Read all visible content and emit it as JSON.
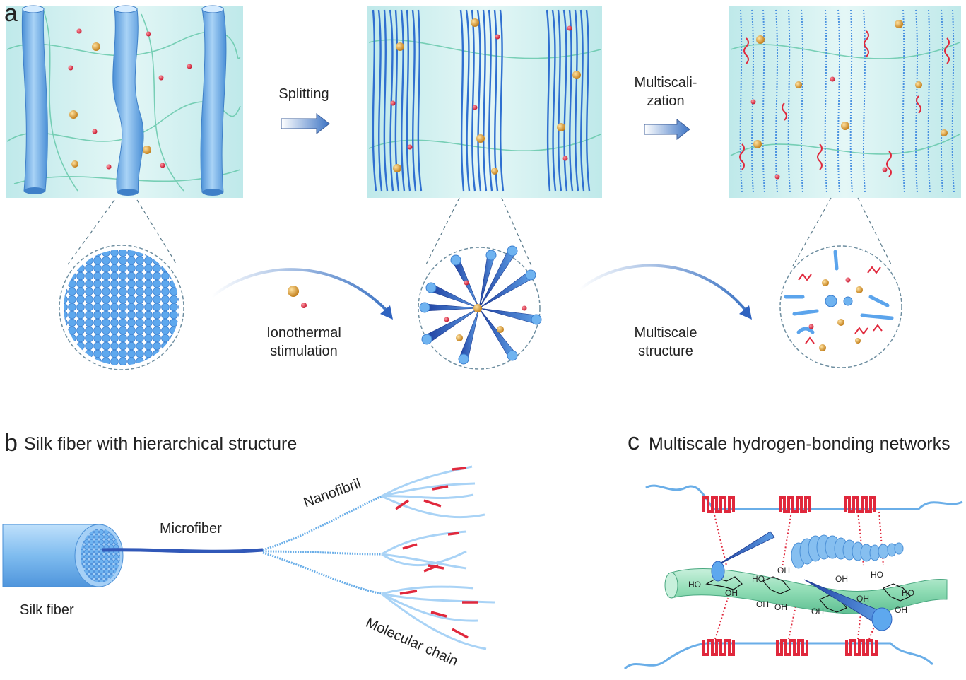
{
  "panel_a": {
    "letter": "a",
    "step1_label": "Splitting",
    "step2_label_line1": "Multiscali-",
    "step2_label_line2": "zation",
    "arrow1_label_line1": "Ionothermal",
    "arrow1_label_line2": "stimulation",
    "arrow2_label_line1": "Multiscale",
    "arrow2_label_line2": "structure"
  },
  "panel_b": {
    "letter": "b",
    "title": "Silk fiber with hierarchical structure",
    "labels": {
      "silk_fiber": "Silk fiber",
      "microfiber": "Microfiber",
      "nanofibril": "Nanofibril",
      "molecular_chain": "Molecular chain"
    }
  },
  "panel_c": {
    "letter": "c",
    "title": "Multiscale hydrogen-bonding networks",
    "oh_labels": [
      "HO",
      "OH",
      "HO",
      "OH",
      "OH",
      "OH",
      "OH",
      "HO",
      "OH",
      "HO",
      "OH",
      "OH"
    ]
  },
  "colors": {
    "fiber_blue": "#6aaee8",
    "dark_blue": "#2f63c0",
    "red": "#e0283c",
    "green": "#7fd4a8",
    "bg_cyan": "#cdeeee",
    "orange": "#d99a2b"
  }
}
